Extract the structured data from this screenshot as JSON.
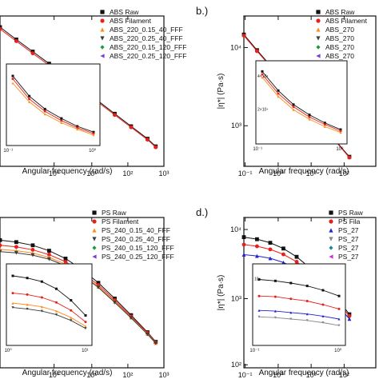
{
  "chart_data": [
    {
      "type": "scatter",
      "panel_label": "",
      "xlabel": "Angular frequency (rad/s)",
      "ylabel": "",
      "xscale": "log",
      "yscale": "log",
      "xlim": [
        0.1,
        1000
      ],
      "ylim": [
        100,
        100000
      ],
      "x_ticks": [
        "10⁰",
        "10¹",
        "10²",
        "10³"
      ],
      "y_ticks": [],
      "legend": [
        "ABS Raw",
        "ABS Filament",
        "ABS_220_0.15_40_FFF",
        "ABS_220_0.25_40_FFF",
        "ABS_220_0.15_120_FFF",
        "ABS_220_0.25_120_FFF"
      ],
      "series": [
        {
          "name": "ABS Raw",
          "x": [
            0.1,
            0.25,
            0.63,
            1.58,
            3.98,
            10,
            25.1,
            63.1,
            158,
            398,
            631
          ],
          "y": [
            60000,
            34000,
            19500,
            11200,
            6300,
            3550,
            2000,
            1120,
            630,
            355,
            250
          ]
        },
        {
          "name": "ABS Filament",
          "x": [
            0.1,
            0.25,
            0.63,
            1.58,
            3.98,
            10,
            25.1,
            63.1,
            158,
            398,
            631
          ],
          "y": [
            55000,
            31500,
            18000,
            10400,
            5900,
            3300,
            1880,
            1060,
            600,
            340,
            240
          ]
        }
      ],
      "inset": {
        "x_ticks": [
          "10⁻¹",
          "10⁰"
        ],
        "series": [
          {
            "name": "ABS Raw",
            "x": [
              0.1,
              0.16,
              0.25,
              0.4,
              0.63,
              1
            ],
            "y": [
              0.9,
              0.62,
              0.44,
              0.31,
              0.2,
              0.12
            ]
          },
          {
            "name": "ABS Filament",
            "x": [
              0.1,
              0.16,
              0.25,
              0.4,
              0.63,
              1
            ],
            "y": [
              0.86,
              0.58,
              0.41,
              0.28,
              0.18,
              0.1
            ]
          },
          {
            "name": "ABS_220_0.15_40_FFF",
            "x": [
              0.1,
              0.16,
              0.25,
              0.4,
              0.63,
              1
            ],
            "y": [
              0.8,
              0.54,
              0.37,
              0.25,
              0.16,
              0.08
            ]
          }
        ]
      }
    },
    {
      "type": "scatter",
      "panel_label": "b.)",
      "xlabel": "Angular frequency (rad/s)",
      "ylabel": "|η*| (Pa·s)",
      "xscale": "log",
      "yscale": "log",
      "xlim": [
        0.1,
        1000
      ],
      "ylim": [
        500,
        100000
      ],
      "x_ticks": [
        "10⁻¹",
        "10⁰",
        "10¹",
        "10²"
      ],
      "y_ticks": [
        "10³",
        "10⁴"
      ],
      "legend": [
        "ABS Raw",
        "ABS Filament",
        "ABS_270",
        "ABS_270",
        "ABS_270",
        "ABS_270"
      ],
      "series": [
        {
          "name": "ABS Raw",
          "x": [
            0.1,
            0.25,
            0.63,
            1.58,
            3.98,
            10,
            25.1,
            63.1,
            158
          ],
          "y": [
            52000,
            30000,
            17500,
            10200,
            6000,
            3500,
            2050,
            1200,
            700
          ]
        },
        {
          "name": "ABS Filament",
          "x": [
            0.1,
            0.25,
            0.63,
            1.58,
            3.98,
            10,
            25.1,
            63.1,
            158
          ],
          "y": [
            50000,
            29000,
            17000,
            9900,
            5800,
            3400,
            2000,
            1170,
            680
          ]
        }
      ],
      "inset": {
        "x_ticks": [
          "10⁻¹",
          "10⁰"
        ],
        "y_ticks": [
          "4×10⁴",
          "2×10⁴"
        ],
        "series": [
          {
            "name": "ABS Raw",
            "x": [
              0.1,
              0.16,
              0.25,
              0.4,
              0.63,
              1
            ],
            "y": [
              0.92,
              0.66,
              0.47,
              0.33,
              0.22,
              0.13
            ]
          },
          {
            "name": "ABS Filament",
            "x": [
              0.1,
              0.16,
              0.25,
              0.4,
              0.63,
              1
            ],
            "y": [
              0.88,
              0.62,
              0.44,
              0.3,
              0.2,
              0.11
            ]
          },
          {
            "name": "ABS_270",
            "x": [
              0.1,
              0.16,
              0.25,
              0.4,
              0.63,
              1
            ],
            "y": [
              0.84,
              0.58,
              0.4,
              0.27,
              0.17,
              0.09
            ]
          }
        ]
      }
    },
    {
      "type": "scatter",
      "panel_label": "",
      "xlabel": "Angular frequency (rad/s)",
      "ylabel": "",
      "xscale": "log",
      "yscale": "log",
      "xlim": [
        0.1,
        1000
      ],
      "ylim": [
        100,
        20000
      ],
      "x_ticks": [
        "10⁰",
        "10¹",
        "10²",
        "10³"
      ],
      "y_ticks": [],
      "legend": [
        "PS Raw",
        "PS Filament",
        "PS_240_0.15_40_FFF",
        "PS_240_0.25_40_FFF",
        "PS_240_0.15_120_FFF",
        "PS_240_0.25_120_FFF"
      ],
      "series": [
        {
          "name": "PS Raw",
          "x": [
            0.1,
            0.25,
            0.63,
            1.58,
            3.98,
            10,
            25.1,
            63.1,
            158,
            398,
            631
          ],
          "y": [
            9000,
            8400,
            7500,
            6200,
            4700,
            3200,
            2000,
            1150,
            640,
            350,
            250
          ]
        },
        {
          "name": "PS Filament",
          "x": [
            0.1,
            0.25,
            0.63,
            1.58,
            3.98,
            10,
            25.1,
            63.1,
            158,
            398,
            631
          ],
          "y": [
            7500,
            7100,
            6400,
            5400,
            4200,
            2900,
            1850,
            1080,
            610,
            340,
            245
          ]
        },
        {
          "name": "PS_240_0.15_40_FFF",
          "x": [
            0.1,
            0.25,
            0.63,
            1.58,
            3.98,
            10,
            25.1,
            63.1,
            158,
            398,
            631
          ],
          "y": [
            6500,
            6200,
            5700,
            4900,
            3850,
            2700,
            1750,
            1030,
            590,
            330,
            240
          ]
        },
        {
          "name": "PS_240_0.25_40_FFF",
          "x": [
            0.1,
            0.25,
            0.63,
            1.58,
            3.98,
            10,
            25.1,
            63.1,
            158,
            398,
            631
          ],
          "y": [
            6000,
            5750,
            5300,
            4600,
            3650,
            2600,
            1700,
            1000,
            580,
            325,
            238
          ]
        }
      ],
      "inset": {
        "x_ticks": [
          "10⁰",
          "10¹"
        ],
        "series": [
          {
            "name": "PS Raw",
            "x": [
              0.1,
              0.25,
              0.63,
              1.58,
              3.98,
              10
            ],
            "y": [
              0.9,
              0.87,
              0.82,
              0.72,
              0.56,
              0.35
            ]
          },
          {
            "name": "PS Filament",
            "x": [
              0.1,
              0.25,
              0.63,
              1.58,
              3.98,
              10
            ],
            "y": [
              0.66,
              0.64,
              0.6,
              0.53,
              0.42,
              0.26
            ]
          },
          {
            "name": "PS_240_0.15_40_FFF",
            "x": [
              0.1,
              0.25,
              0.63,
              1.58,
              3.98,
              10
            ],
            "y": [
              0.52,
              0.5,
              0.47,
              0.41,
              0.32,
              0.2
            ]
          },
          {
            "name": "PS_240_0.25_40_FFF",
            "x": [
              0.1,
              0.25,
              0.63,
              1.58,
              3.98,
              10
            ],
            "y": [
              0.46,
              0.44,
              0.41,
              0.36,
              0.28,
              0.17
            ]
          }
        ]
      }
    },
    {
      "type": "scatter",
      "panel_label": "d.)",
      "xlabel": "Angular frequency (rad/s)",
      "ylabel": "|η*| (Pa·s)",
      "xscale": "log",
      "yscale": "log",
      "xlim": [
        0.1,
        1000
      ],
      "ylim": [
        100,
        20000
      ],
      "x_ticks": [
        "10⁻¹",
        "10⁰",
        "10¹",
        "10²"
      ],
      "y_ticks": [
        "10²",
        "10³",
        "10⁴"
      ],
      "legend": [
        "PS Raw",
        "PS Fila",
        "PS_27",
        "PS_27",
        "PS_27",
        "PS_27"
      ],
      "series": [
        {
          "name": "PS Raw",
          "x": [
            0.1,
            0.25,
            0.63,
            1.58,
            3.98,
            10,
            25.1,
            63.1,
            158
          ],
          "y": [
            10000,
            9300,
            8200,
            6700,
            5000,
            3400,
            2100,
            1200,
            660
          ]
        },
        {
          "name": "PS Fila",
          "x": [
            0.1,
            0.25,
            0.63,
            1.58,
            3.98,
            10,
            25.1,
            63.1,
            158
          ],
          "y": [
            7700,
            7250,
            6500,
            5450,
            4200,
            2950,
            1880,
            1100,
            620
          ]
        },
        {
          "name": "PS_27",
          "x": [
            0.1,
            0.25,
            0.63,
            1.58,
            3.98,
            10,
            25.1,
            63.1,
            158
          ],
          "y": [
            5400,
            5150,
            4750,
            4100,
            3300,
            2400,
            1600,
            970,
            560
          ]
        }
      ],
      "inset": {
        "x_ticks": [
          "10⁻¹",
          "10⁰"
        ],
        "y_ticks": [
          "10⁴"
        ],
        "series": [
          {
            "name": "PS Raw",
            "x": [
              0.1,
              0.16,
              0.25,
              0.4,
              0.63,
              1
            ],
            "y": [
              0.85,
              0.83,
              0.8,
              0.76,
              0.7,
              0.62
            ]
          },
          {
            "name": "PS Fila",
            "x": [
              0.1,
              0.16,
              0.25,
              0.4,
              0.63,
              1
            ],
            "y": [
              0.62,
              0.61,
              0.58,
              0.55,
              0.5,
              0.44
            ]
          },
          {
            "name": "PS_27",
            "x": [
              0.1,
              0.16,
              0.25,
              0.4,
              0.63,
              1
            ],
            "y": [
              0.42,
              0.41,
              0.39,
              0.37,
              0.34,
              0.3
            ]
          },
          {
            "name": "PS_27",
            "x": [
              0.1,
              0.16,
              0.25,
              0.4,
              0.63,
              1
            ],
            "y": [
              0.33,
              0.32,
              0.3,
              0.28,
              0.25,
              0.21
            ]
          }
        ]
      }
    }
  ],
  "legend_colors": [
    "#111111",
    "#e8201c",
    "#ff8c1a",
    "#3d3d3d",
    "#1a9a3a",
    "#7a3dd6"
  ],
  "legend_markers": [
    "square",
    "circle",
    "triangle-up",
    "triangle-down",
    "diamond",
    "triangle-left"
  ],
  "d_legend_colors": [
    "#111111",
    "#e8201c",
    "#2222cc",
    "#888888",
    "#1a8a8a",
    "#cc33cc"
  ],
  "d_legend_markers": [
    "square",
    "circle",
    "triangle-up",
    "triangle-down",
    "diamond",
    "triangle-left"
  ]
}
